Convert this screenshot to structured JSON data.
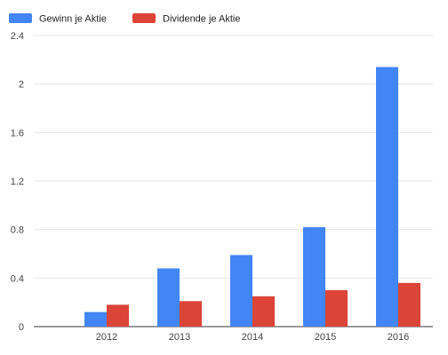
{
  "chart_data": {
    "type": "bar",
    "title": "",
    "xlabel": "",
    "ylabel": "",
    "categories": [
      "2012",
      "2013",
      "2014",
      "2015",
      "2016"
    ],
    "series": [
      {
        "name": "Gewinn je Aktie",
        "color": "#4285f4",
        "values": [
          0.12,
          0.48,
          0.59,
          0.82,
          2.14
        ]
      },
      {
        "name": "Dividende je Aktie",
        "color": "#db4437",
        "values": [
          0.18,
          0.21,
          0.25,
          0.3,
          0.36
        ]
      }
    ],
    "ylim": [
      0,
      2.4
    ],
    "yticks": [
      "0",
      "0.4",
      "0.8",
      "1.2",
      "1.6",
      "2",
      "2.4"
    ],
    "grid": true,
    "legend": "top-left"
  }
}
